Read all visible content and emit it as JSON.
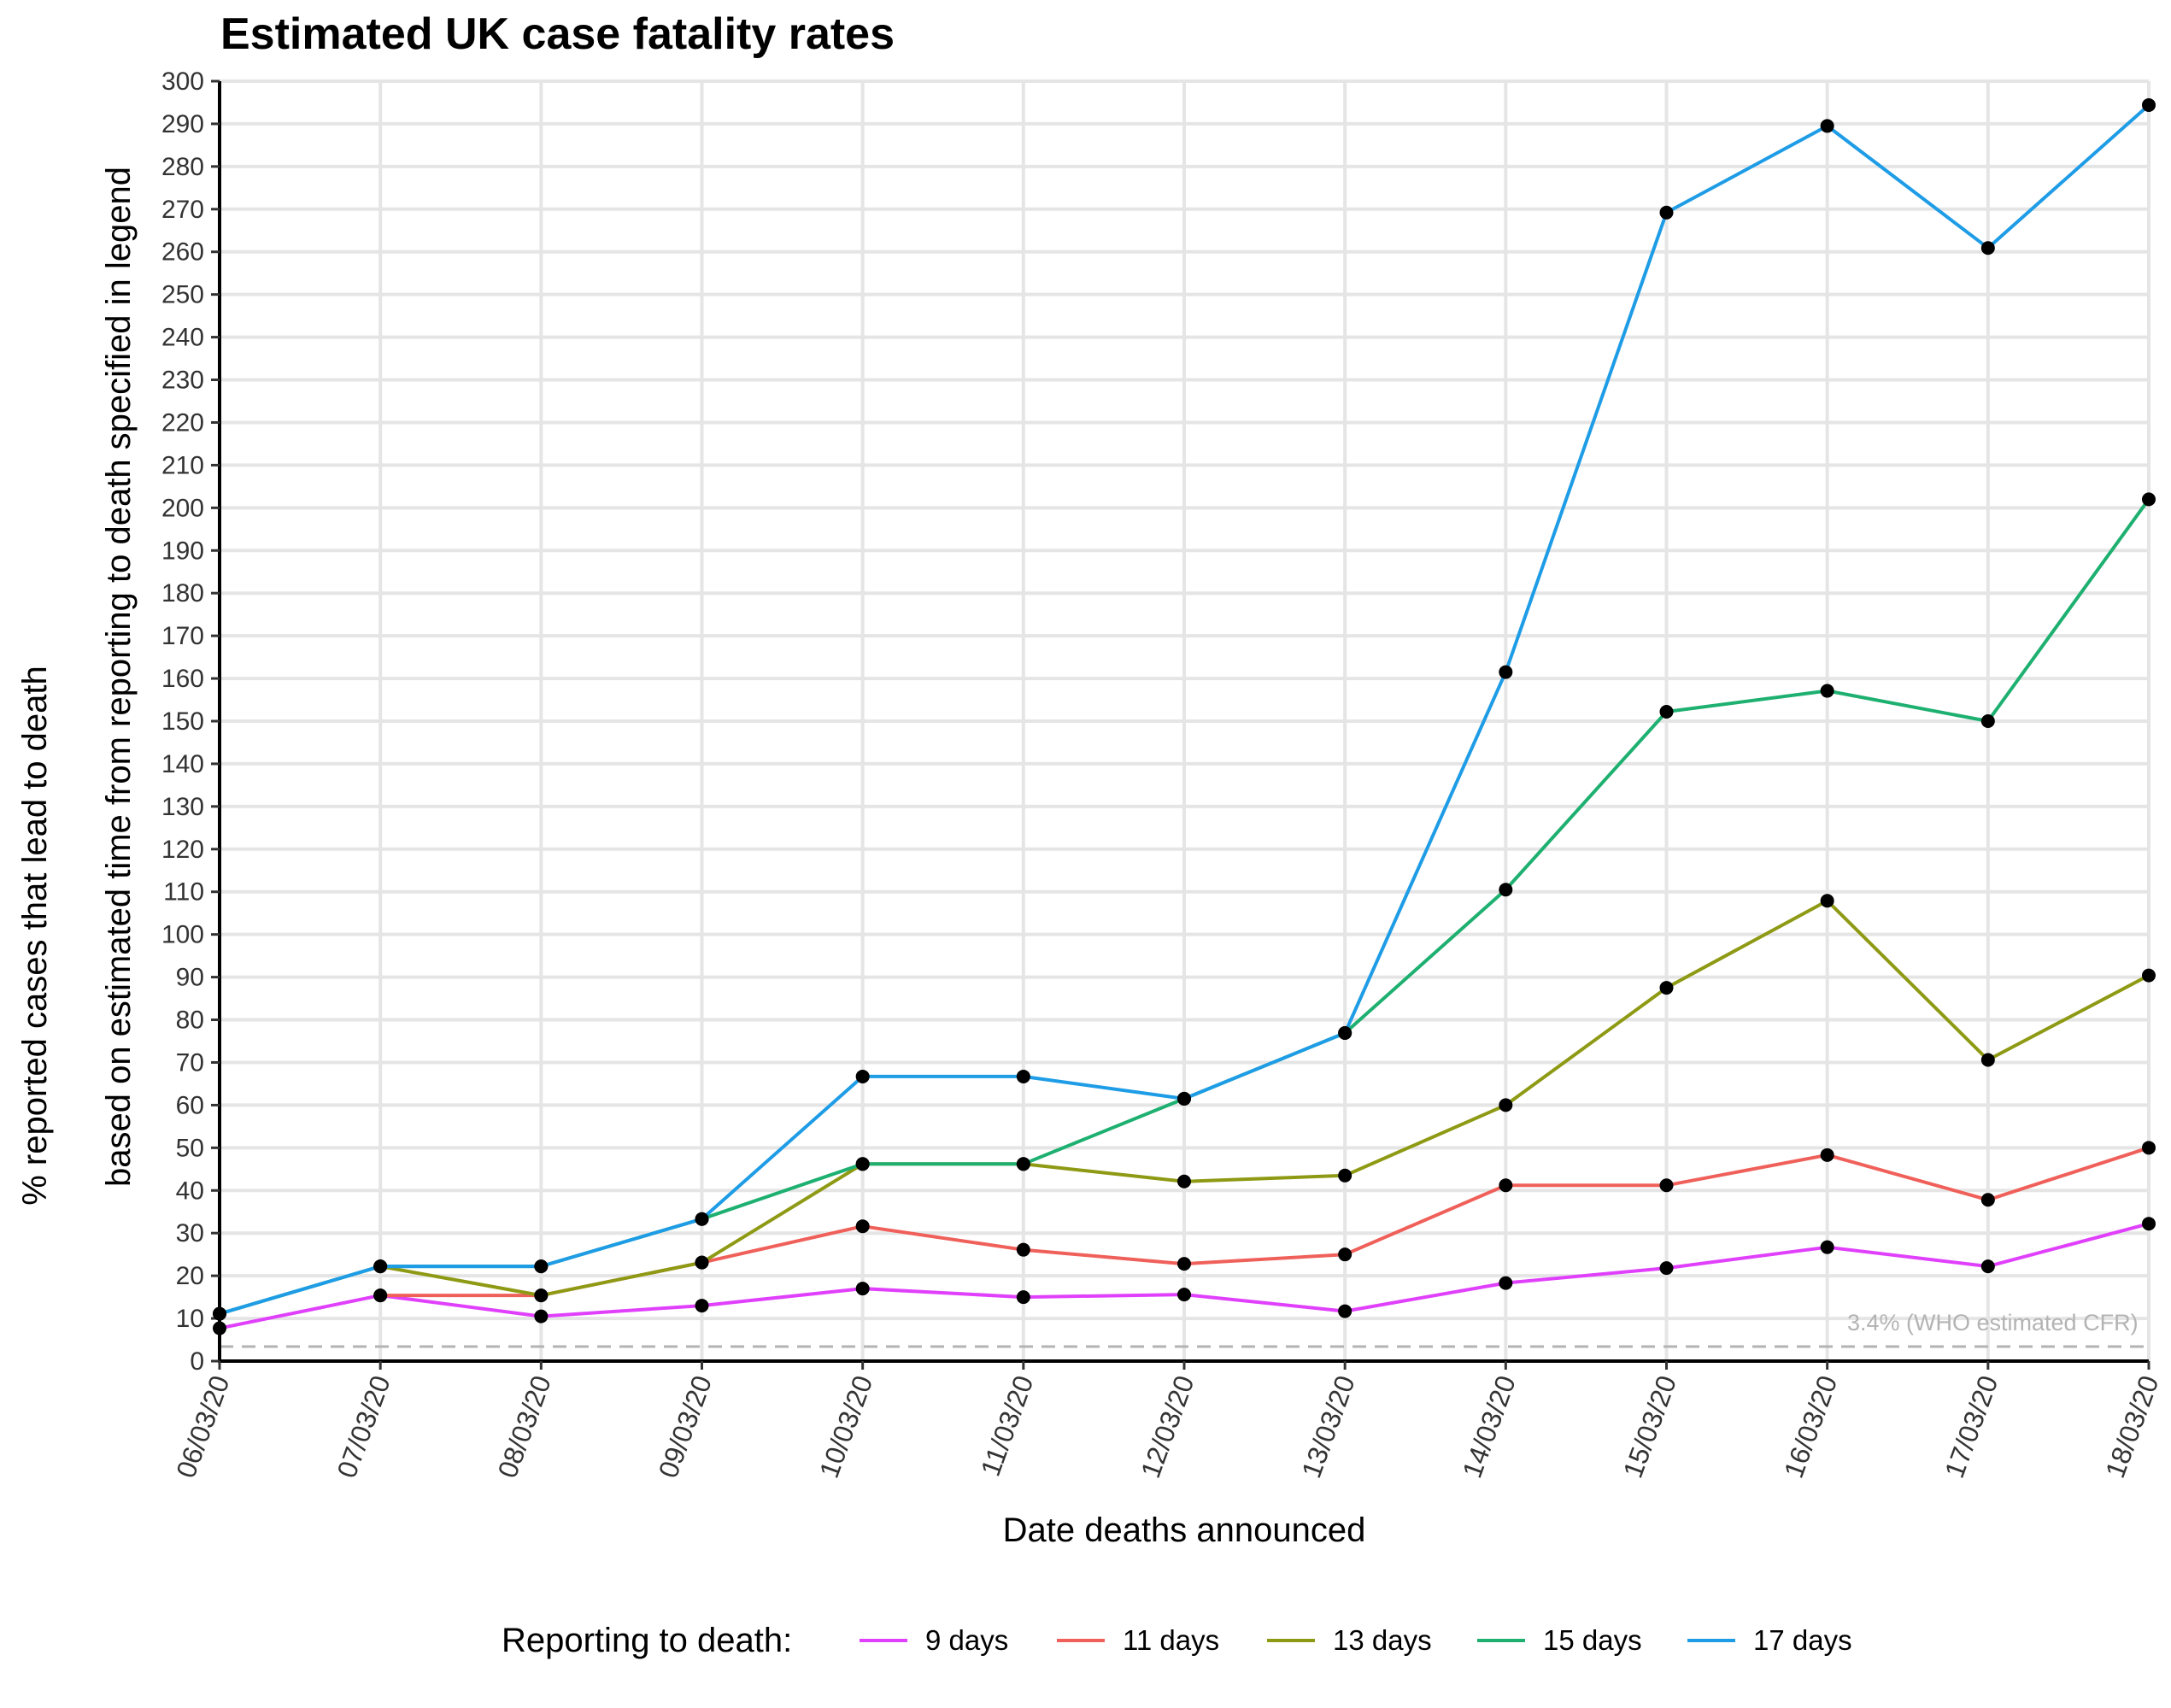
{
  "chart_data": {
    "type": "line",
    "title": "Estimated UK case fatality rates",
    "xlabel": "Date deaths announced",
    "ylabel_line1": "% reported cases that lead to death",
    "ylabel_line2": "based on estimated time from reporting to death specified in legend",
    "categories": [
      "06/03/20",
      "07/03/20",
      "08/03/20",
      "09/03/20",
      "10/03/20",
      "11/03/20",
      "12/03/20",
      "13/03/20",
      "14/03/20",
      "15/03/20",
      "16/03/20",
      "17/03/20",
      "18/03/20"
    ],
    "ylim": [
      0,
      300
    ],
    "yticks": [
      0,
      10,
      20,
      30,
      40,
      50,
      60,
      70,
      80,
      90,
      100,
      110,
      120,
      130,
      140,
      150,
      160,
      170,
      180,
      190,
      200,
      210,
      220,
      230,
      240,
      250,
      260,
      270,
      280,
      290,
      300
    ],
    "grid": true,
    "legend_title": "Reporting to death:",
    "legend_position": "bottom",
    "series": [
      {
        "name": "9 days",
        "color": "#E040FB",
        "values": [
          7.7,
          15.4,
          10.5,
          13.0,
          17.0,
          15.0,
          15.6,
          11.7,
          18.3,
          21.8,
          26.7,
          22.2,
          32.2
        ]
      },
      {
        "name": "11 days",
        "color": "#F0605A",
        "values": [
          null,
          15.4,
          15.4,
          23.1,
          31.6,
          26.1,
          22.8,
          25.0,
          41.2,
          41.2,
          48.3,
          37.8,
          50.0
        ]
      },
      {
        "name": "13 days",
        "color": "#8E9A14",
        "values": [
          null,
          22.2,
          15.4,
          23.1,
          46.2,
          46.2,
          42.1,
          43.5,
          60.0,
          87.5,
          107.9,
          70.6,
          90.4
        ]
      },
      {
        "name": "15 days",
        "color": "#1EB070",
        "values": [
          11.1,
          22.2,
          22.2,
          33.3,
          46.2,
          46.2,
          61.5,
          76.9,
          110.5,
          152.2,
          157.1,
          150.0,
          202.0
        ]
      },
      {
        "name": "17 days",
        "color": "#1E9CE6",
        "values": [
          11.1,
          22.2,
          22.2,
          33.3,
          66.7,
          66.7,
          61.5,
          76.9,
          161.5,
          269.2,
          289.5,
          260.9,
          294.4
        ]
      }
    ],
    "reference_line": {
      "value": 3.4,
      "label": "3.4% (WHO estimated CFR)",
      "color": "#b3b3b3"
    }
  }
}
